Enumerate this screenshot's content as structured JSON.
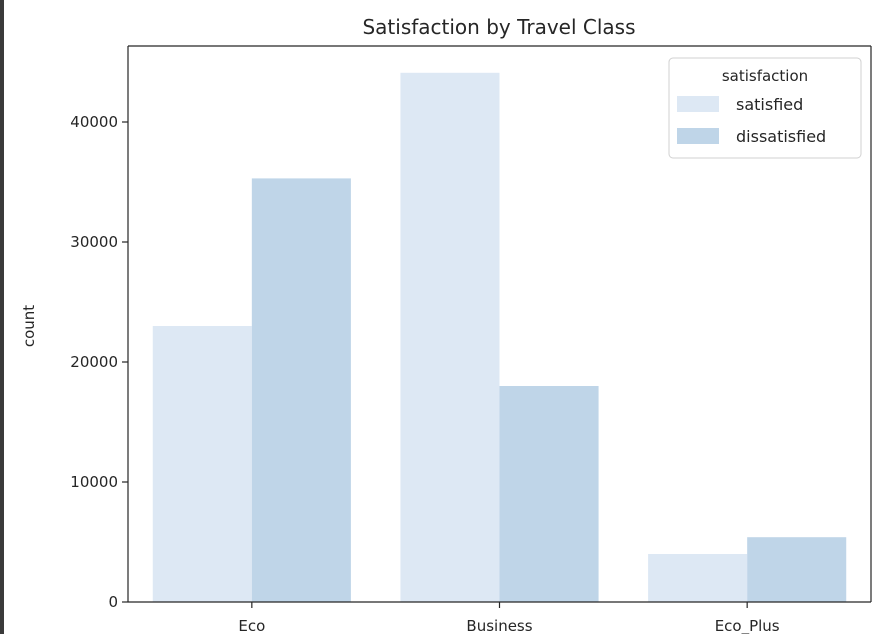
{
  "chart_data": {
    "type": "bar",
    "title": "Satisfaction by Travel Class",
    "xlabel": "",
    "ylabel": "count",
    "categories": [
      "Eco",
      "Business",
      "Eco_Plus"
    ],
    "series": [
      {
        "name": "satisfied",
        "values": [
          23000,
          44100,
          4000
        ],
        "color": "#dde8f4"
      },
      {
        "name": "dissatisfied",
        "values": [
          35300,
          18000,
          5400
        ],
        "color": "#bfd5e8"
      }
    ],
    "yticks": [
      "0",
      "10000",
      "20000",
      "30000",
      "40000"
    ],
    "ylim": [
      0,
      46300
    ],
    "grid": false,
    "legend": {
      "title": "satisfaction",
      "placement": "top-right"
    }
  }
}
